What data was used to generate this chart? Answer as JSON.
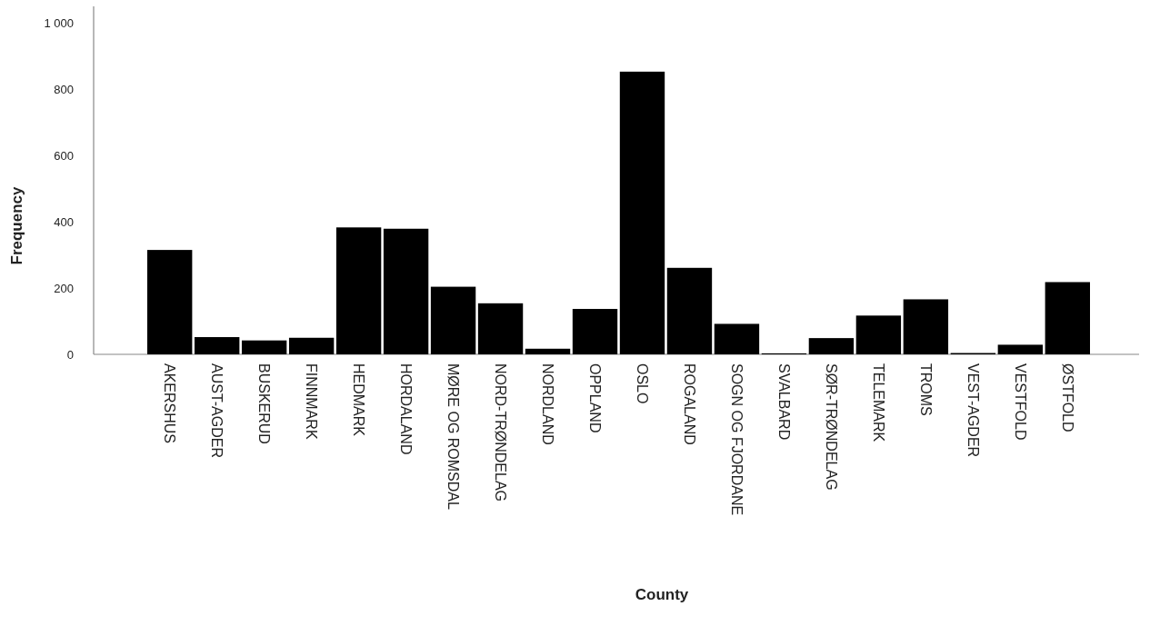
{
  "chart_data": {
    "type": "bar",
    "xlabel": "County",
    "ylabel": "Frequency",
    "categories": [
      "AKERSHUS",
      "AUST-AGDER",
      "BUSKERUD",
      "FINNMARK",
      "HEDMARK",
      "HORDALAND",
      "MØRE OG ROMSDAL",
      "NORD-TRØNDELAG",
      "NORDLAND",
      "OPPLAND",
      "OSLO",
      "ROGALAND",
      "SOGN OG FJORDANE",
      "SVALBARD",
      "SØR-TRØNDELAG",
      "TELEMARK",
      "TROMS",
      "VEST-AGDER",
      "VESTFOLD",
      "ØSTFOLD"
    ],
    "values": [
      315,
      52,
      42,
      50,
      383,
      379,
      204,
      154,
      17,
      137,
      853,
      261,
      92,
      3,
      49,
      117,
      166,
      4,
      29,
      218
    ],
    "color": "#000000",
    "ylim": [
      0,
      1050
    ],
    "yticks": [
      0,
      200,
      400,
      600,
      800,
      {
        "value": 1000,
        "label": "1 000"
      }
    ],
    "grid": false
  }
}
